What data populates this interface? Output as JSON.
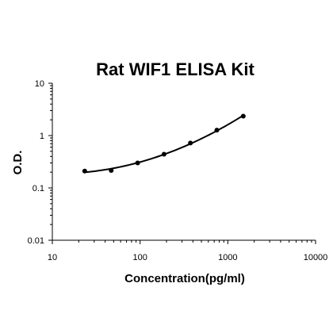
{
  "chart_data": {
    "type": "scatter",
    "title": "Rat WIF1 ELISA Kit",
    "xlabel": "Concentration(pg/ml)",
    "ylabel": "O.D.",
    "x_scale": "log",
    "y_scale": "log",
    "xlim": [
      10,
      10000
    ],
    "ylim": [
      0.01,
      10
    ],
    "x_ticks": [
      "10",
      "100",
      "1000",
      "10000"
    ],
    "y_ticks": [
      "0.01",
      "0.1",
      "1",
      "10"
    ],
    "grid": false,
    "legend": "none",
    "series": [
      {
        "points": [
          {
            "x": 23.4,
            "y": 0.21
          },
          {
            "x": 46.9,
            "y": 0.215
          },
          {
            "x": 93.8,
            "y": 0.3
          },
          {
            "x": 187.5,
            "y": 0.44
          },
          {
            "x": 375,
            "y": 0.72
          },
          {
            "x": 750,
            "y": 1.27
          },
          {
            "x": 1500,
            "y": 2.35
          }
        ],
        "fit_curve": true
      }
    ],
    "colors": {
      "marks": "#000000",
      "axes": "#000000"
    }
  }
}
